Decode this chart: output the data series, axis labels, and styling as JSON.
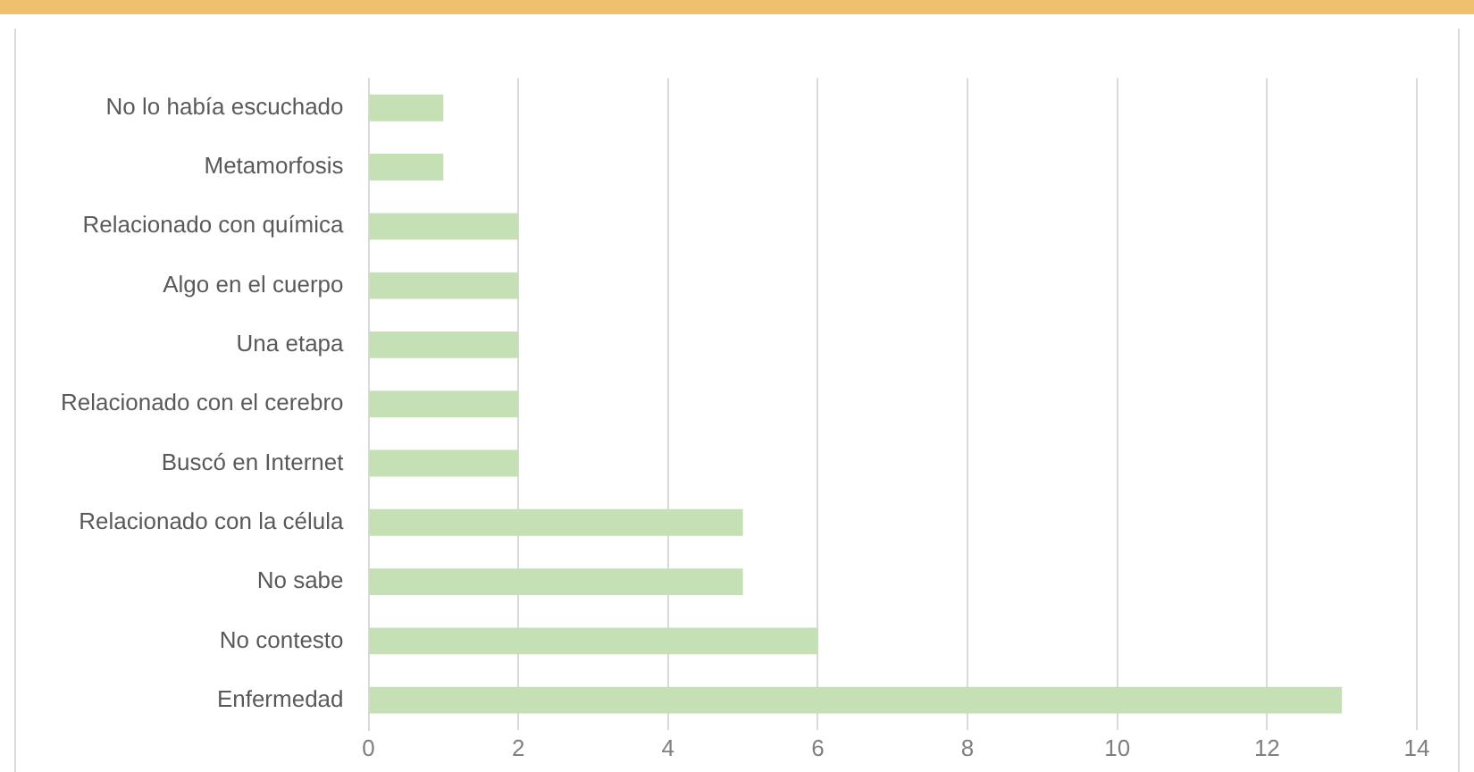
{
  "chart_data": {
    "type": "bar",
    "orientation": "horizontal",
    "categories": [
      "No lo había escuchado",
      "Metamorfosis",
      "Relacionado con química",
      "Algo en el cuerpo",
      "Una etapa",
      "Relacionado con el cerebro",
      "Buscó en Internet",
      "Relacionado con la célula",
      "No sabe",
      "No contesto",
      "Enfermedad"
    ],
    "values": [
      1,
      1,
      2,
      2,
      2,
      2,
      2,
      5,
      5,
      6,
      13
    ],
    "color": "#c5e0b4",
    "xlim": [
      0,
      14
    ],
    "xticks": [
      0,
      2,
      4,
      6,
      8,
      10,
      12,
      14
    ],
    "grid": "x",
    "legend": false
  }
}
